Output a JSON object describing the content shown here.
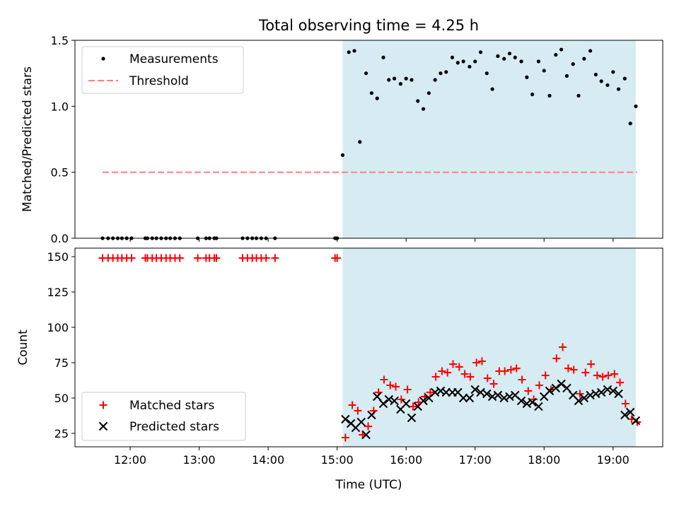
{
  "chart_data": [
    {
      "type": "scatter",
      "title": "Total observing time = 4.25 h",
      "ylabel": "Matched/Predicted stars",
      "xlabel": "",
      "xlim": [
        11.2,
        19.72
      ],
      "ylim": [
        0,
        1.5
      ],
      "yticks": [
        0.0,
        0.5,
        1.0,
        1.5
      ],
      "ytick_labels": [
        "0.0",
        "0.5",
        "1.0",
        "1.5"
      ],
      "observing_window": [
        15.08,
        19.33
      ],
      "shade_color": "#add8e6",
      "threshold": {
        "name": "Threshold",
        "y": 0.5,
        "x_range": [
          11.6,
          19.35
        ],
        "color": "#ff7f7f"
      },
      "legend": {
        "placement": "top-left",
        "entries": [
          "Measurements",
          "Threshold"
        ]
      },
      "series": [
        {
          "name": "Measurements",
          "marker": "dot",
          "color": "#000000",
          "x": [
            11.6,
            11.68,
            11.75,
            11.82,
            11.88,
            11.95,
            12.02,
            12.22,
            12.25,
            12.32,
            12.38,
            12.45,
            12.52,
            12.58,
            12.65,
            12.72,
            12.98,
            13.1,
            13.15,
            13.22,
            13.25,
            13.63,
            13.7,
            13.77,
            13.83,
            13.9,
            13.97,
            14.1,
            14.97,
            15.0,
            15.08,
            15.17,
            15.25,
            15.33,
            15.42,
            15.5,
            15.58,
            15.67,
            15.75,
            15.83,
            15.92,
            16.0,
            16.08,
            16.17,
            16.25,
            16.33,
            16.42,
            16.5,
            16.58,
            16.67,
            16.75,
            16.83,
            16.92,
            17.0,
            17.08,
            17.17,
            17.25,
            17.33,
            17.42,
            17.5,
            17.58,
            17.67,
            17.75,
            17.83,
            17.92,
            18.0,
            18.08,
            18.17,
            18.25,
            18.33,
            18.42,
            18.5,
            18.58,
            18.67,
            18.75,
            18.83,
            18.92,
            19.0,
            19.08,
            19.17,
            19.25,
            19.33
          ],
          "y": [
            0,
            0,
            0,
            0,
            0,
            0,
            0,
            0,
            0,
            0,
            0,
            0,
            0,
            0,
            0,
            0,
            0,
            0,
            0,
            0,
            0,
            0,
            0,
            0,
            0,
            0,
            0,
            0,
            0,
            0,
            0.63,
            1.41,
            1.42,
            0.73,
            1.25,
            1.1,
            1.06,
            1.37,
            1.2,
            1.21,
            1.17,
            1.21,
            1.2,
            1.04,
            0.98,
            1.1,
            1.2,
            1.25,
            1.26,
            1.37,
            1.33,
            1.34,
            1.3,
            1.34,
            1.41,
            1.25,
            1.13,
            1.38,
            1.36,
            1.4,
            1.37,
            1.34,
            1.22,
            1.09,
            1.34,
            1.27,
            1.08,
            1.39,
            1.43,
            1.23,
            1.32,
            1.08,
            1.36,
            1.42,
            1.24,
            1.19,
            1.16,
            1.26,
            1.13,
            1.21,
            0.87,
            1.0
          ]
        }
      ]
    },
    {
      "type": "scatter",
      "title": "",
      "ylabel": "Count",
      "xlabel": "Time (UTC)",
      "xlim": [
        11.2,
        19.72
      ],
      "ylim": [
        15.5,
        156
      ],
      "yticks": [
        25,
        50,
        75,
        100,
        125,
        150
      ],
      "ytick_labels": [
        "25",
        "50",
        "75",
        "100",
        "125",
        "150"
      ],
      "xticks": [
        12,
        13,
        14,
        15,
        16,
        17,
        18,
        19
      ],
      "xtick_labels": [
        "12:00",
        "13:00",
        "14:00",
        "15:00",
        "16:00",
        "17:00",
        "18:00",
        "19:00"
      ],
      "observing_window": [
        15.08,
        19.33
      ],
      "shade_color": "#add8e6",
      "legend": {
        "placement": "bottom-left",
        "entries": [
          "Matched stars",
          "Predicted stars"
        ]
      },
      "series": [
        {
          "name": "Matched stars",
          "marker": "plus",
          "color": "#ff0000",
          "x": [
            11.6,
            11.68,
            11.75,
            11.82,
            11.88,
            11.95,
            12.02,
            12.22,
            12.25,
            12.32,
            12.38,
            12.45,
            12.52,
            12.58,
            12.65,
            12.72,
            12.98,
            13.1,
            13.15,
            13.22,
            13.25,
            13.63,
            13.7,
            13.77,
            13.83,
            13.9,
            13.97,
            14.1,
            14.97,
            15.0,
            15.12,
            15.22,
            15.3,
            15.37,
            15.45,
            15.53,
            15.6,
            15.68,
            15.77,
            15.85,
            15.93,
            16.02,
            16.1,
            16.18,
            16.27,
            16.35,
            16.43,
            16.52,
            16.6,
            16.68,
            16.77,
            16.85,
            16.93,
            17.02,
            17.1,
            17.18,
            17.27,
            17.35,
            17.43,
            17.52,
            17.6,
            17.68,
            17.77,
            17.85,
            17.93,
            18.02,
            18.1,
            18.18,
            18.27,
            18.35,
            18.43,
            18.52,
            18.6,
            18.68,
            18.77,
            18.85,
            18.93,
            19.02,
            19.1,
            19.18,
            19.27,
            19.35
          ],
          "y": [
            149,
            149,
            149,
            149,
            149,
            149,
            149,
            149,
            149,
            149,
            149,
            149,
            149,
            149,
            149,
            149,
            149,
            149,
            149,
            149,
            149,
            149,
            149,
            149,
            149,
            149,
            149,
            149,
            149,
            149,
            22,
            45,
            41,
            24,
            30,
            41,
            54,
            63,
            59,
            58,
            49,
            56,
            44,
            47,
            51,
            54,
            65,
            69,
            68,
            74,
            72,
            67,
            65,
            75,
            76,
            64,
            60,
            69,
            69,
            70,
            71,
            63,
            55,
            49,
            59,
            66,
            56,
            78,
            86,
            71,
            70,
            53,
            68,
            74,
            66,
            65,
            66,
            67,
            61,
            46,
            35,
            33
          ]
        },
        {
          "name": "Predicted stars",
          "marker": "x",
          "color": "#000000",
          "x": [
            15.12,
            15.2,
            15.27,
            15.35,
            15.42,
            15.5,
            15.58,
            15.67,
            15.75,
            15.83,
            15.92,
            16.0,
            16.08,
            16.17,
            16.25,
            16.33,
            16.42,
            16.5,
            16.58,
            16.67,
            16.75,
            16.83,
            16.92,
            17.0,
            17.08,
            17.17,
            17.25,
            17.33,
            17.42,
            17.5,
            17.58,
            17.67,
            17.75,
            17.83,
            17.92,
            18.0,
            18.08,
            18.17,
            18.25,
            18.33,
            18.42,
            18.5,
            18.58,
            18.67,
            18.75,
            18.83,
            18.92,
            19.0,
            19.08,
            19.17,
            19.25,
            19.33
          ],
          "y": [
            35,
            32,
            29,
            33,
            24,
            38,
            51,
            46,
            49,
            48,
            42,
            46,
            36,
            44,
            48,
            50,
            54,
            55,
            54,
            54,
            54,
            50,
            50,
            56,
            54,
            53,
            51,
            52,
            50,
            51,
            52,
            48,
            46,
            47,
            44,
            51,
            55,
            57,
            60,
            57,
            52,
            48,
            50,
            52,
            53,
            54,
            56,
            55,
            53,
            38,
            40,
            34
          ]
        }
      ]
    }
  ]
}
